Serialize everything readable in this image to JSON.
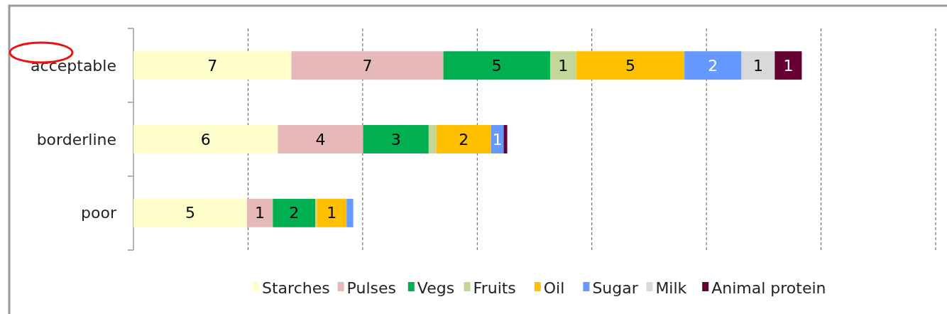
{
  "chart_data": {
    "type": "bar",
    "orientation": "horizontal",
    "stacked": true,
    "categories": [
      "acceptable",
      "borderline",
      "poor"
    ],
    "xlim": [
      0,
      35
    ],
    "xticks": [
      {
        "value": 0,
        "label": null
      },
      {
        "value": 5,
        "label": null
      },
      {
        "value": 10,
        "label": null
      },
      {
        "value": 15,
        "label": null
      },
      {
        "value": 20,
        "label": null
      },
      {
        "value": 25,
        "label": null
      },
      {
        "value": 30,
        "label": null
      },
      {
        "value": 35,
        "label": null
      }
    ],
    "grid": "x",
    "legend": "bottom",
    "series": [
      {
        "name": "Starches",
        "color": "#ffffcc",
        "values": [
          6.89,
          6.3,
          4.95
        ],
        "value_labels": [
          "7",
          "6",
          "5"
        ]
      },
      {
        "name": "Pulses",
        "color": "#e6b8b7",
        "values": [
          6.63,
          3.72,
          1.13
        ],
        "value_labels": [
          "7",
          "4",
          "1"
        ]
      },
      {
        "name": "Vegs",
        "color": "#00b050",
        "values": [
          4.66,
          2.86,
          1.86
        ],
        "value_labels": [
          "5",
          "3",
          "2"
        ]
      },
      {
        "name": "Fruits",
        "color": "#c4d79b",
        "values": [
          1.14,
          0.33,
          0.06
        ],
        "value_labels": [
          "1",
          null,
          null
        ]
      },
      {
        "name": "Oil",
        "color": "#ffc000",
        "values": [
          4.72,
          2.4,
          1.3
        ],
        "value_labels": [
          "5",
          "2",
          "1"
        ]
      },
      {
        "name": "Sugar",
        "color": "#6699ff",
        "values": [
          2.49,
          0.54,
          0.29
        ],
        "value_labels": [
          "2",
          "1",
          null
        ]
      },
      {
        "name": "Milk",
        "color": "#d9d9d9",
        "values": [
          1.45,
          0,
          0
        ],
        "value_labels": [
          "1",
          null,
          null
        ]
      },
      {
        "name": "Animal protein",
        "color": "#660033",
        "values": [
          1.18,
          0.16,
          0
        ],
        "value_labels": [
          "1",
          null,
          null
        ]
      }
    ]
  }
}
